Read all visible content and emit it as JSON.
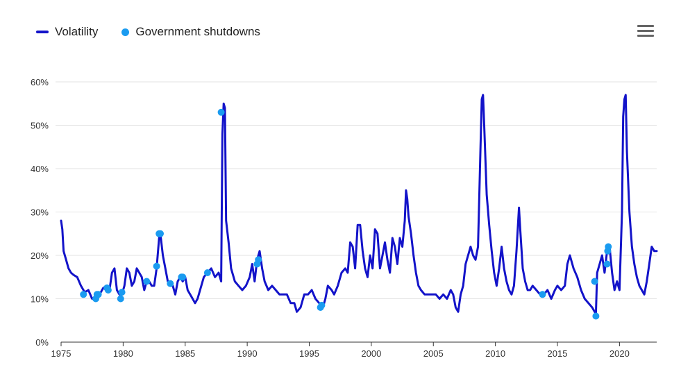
{
  "legend": {
    "items": [
      {
        "label": "Volatility",
        "color": "#1313c9"
      },
      {
        "label": "Government shutdowns",
        "color": "#1a9bf0"
      }
    ]
  },
  "menu_icon": "hamburger-menu-icon",
  "chart_data": {
    "type": "line",
    "title": "",
    "xlabel": "",
    "ylabel": "",
    "xlim": [
      1975,
      2023
    ],
    "ylim": [
      0,
      60
    ],
    "x_ticks": [
      1975,
      1980,
      1985,
      1990,
      1995,
      2000,
      2005,
      2010,
      2015,
      2020
    ],
    "y_ticks": [
      0,
      10,
      20,
      30,
      40,
      50,
      60
    ],
    "y_tick_labels": [
      "0%",
      "10%",
      "20%",
      "30%",
      "40%",
      "50%",
      "60%"
    ],
    "grid": true,
    "legend_position": "top-left",
    "series": [
      {
        "name": "Volatility",
        "color": "#1313c9",
        "points": [
          [
            1975.0,
            28
          ],
          [
            1975.1,
            26
          ],
          [
            1975.2,
            21
          ],
          [
            1975.4,
            19
          ],
          [
            1975.6,
            17
          ],
          [
            1975.8,
            16
          ],
          [
            1976.0,
            15.5
          ],
          [
            1976.3,
            15
          ],
          [
            1976.6,
            13
          ],
          [
            1976.9,
            11.5
          ],
          [
            1977.2,
            12
          ],
          [
            1977.5,
            10
          ],
          [
            1977.8,
            10
          ],
          [
            1978.1,
            11
          ],
          [
            1978.4,
            12.5
          ],
          [
            1978.7,
            13
          ],
          [
            1978.9,
            12
          ],
          [
            1979.1,
            16
          ],
          [
            1979.3,
            17
          ],
          [
            1979.5,
            12
          ],
          [
            1979.7,
            11
          ],
          [
            1979.9,
            11
          ],
          [
            1980.1,
            13
          ],
          [
            1980.3,
            17
          ],
          [
            1980.5,
            16
          ],
          [
            1980.7,
            13
          ],
          [
            1980.9,
            14
          ],
          [
            1981.1,
            17
          ],
          [
            1981.3,
            16
          ],
          [
            1981.5,
            15
          ],
          [
            1981.7,
            12
          ],
          [
            1981.9,
            14
          ],
          [
            1982.1,
            14
          ],
          [
            1982.3,
            13
          ],
          [
            1982.5,
            13
          ],
          [
            1982.7,
            17
          ],
          [
            1982.9,
            24
          ],
          [
            1983.0,
            25
          ],
          [
            1983.2,
            20
          ],
          [
            1983.4,
            17
          ],
          [
            1983.6,
            14
          ],
          [
            1983.8,
            13
          ],
          [
            1984.0,
            13
          ],
          [
            1984.2,
            11
          ],
          [
            1984.4,
            14
          ],
          [
            1984.6,
            15
          ],
          [
            1984.8,
            14
          ],
          [
            1985.0,
            15
          ],
          [
            1985.2,
            12
          ],
          [
            1985.4,
            11
          ],
          [
            1985.6,
            10
          ],
          [
            1985.8,
            9
          ],
          [
            1986.0,
            10
          ],
          [
            1986.3,
            13
          ],
          [
            1986.5,
            15
          ],
          [
            1986.8,
            16
          ],
          [
            1987.1,
            17
          ],
          [
            1987.4,
            15
          ],
          [
            1987.7,
            16
          ],
          [
            1987.9,
            14
          ],
          [
            1988.0,
            48
          ],
          [
            1988.1,
            55
          ],
          [
            1988.2,
            54
          ],
          [
            1988.3,
            28
          ],
          [
            1988.5,
            23
          ],
          [
            1988.7,
            17
          ],
          [
            1989.0,
            14
          ],
          [
            1989.3,
            13
          ],
          [
            1989.6,
            12
          ],
          [
            1989.9,
            13
          ],
          [
            1990.2,
            15
          ],
          [
            1990.4,
            18
          ],
          [
            1990.6,
            14
          ],
          [
            1990.8,
            19
          ],
          [
            1991.0,
            21
          ],
          [
            1991.2,
            17
          ],
          [
            1991.4,
            14
          ],
          [
            1991.7,
            12
          ],
          [
            1992.0,
            13
          ],
          [
            1992.3,
            12
          ],
          [
            1992.6,
            11
          ],
          [
            1992.9,
            11
          ],
          [
            1993.2,
            11
          ],
          [
            1993.5,
            9
          ],
          [
            1993.8,
            9
          ],
          [
            1994.0,
            7
          ],
          [
            1994.3,
            8
          ],
          [
            1994.6,
            11
          ],
          [
            1994.9,
            11
          ],
          [
            1995.2,
            12
          ],
          [
            1995.5,
            10
          ],
          [
            1995.8,
            9
          ],
          [
            1996.1,
            8
          ],
          [
            1996.3,
            10
          ],
          [
            1996.5,
            13
          ],
          [
            1996.8,
            12
          ],
          [
            1997.0,
            11
          ],
          [
            1997.3,
            13
          ],
          [
            1997.6,
            16
          ],
          [
            1997.9,
            17
          ],
          [
            1998.1,
            16
          ],
          [
            1998.3,
            23
          ],
          [
            1998.5,
            22
          ],
          [
            1998.7,
            17
          ],
          [
            1998.9,
            27
          ],
          [
            1999.1,
            27
          ],
          [
            1999.3,
            21
          ],
          [
            1999.5,
            17
          ],
          [
            1999.7,
            15
          ],
          [
            1999.9,
            20
          ],
          [
            2000.1,
            17
          ],
          [
            2000.3,
            26
          ],
          [
            2000.5,
            25
          ],
          [
            2000.7,
            17
          ],
          [
            2000.9,
            20
          ],
          [
            2001.1,
            23
          ],
          [
            2001.3,
            19
          ],
          [
            2001.5,
            16
          ],
          [
            2001.7,
            24
          ],
          [
            2001.9,
            22
          ],
          [
            2002.1,
            18
          ],
          [
            2002.3,
            24
          ],
          [
            2002.5,
            22
          ],
          [
            2002.7,
            28
          ],
          [
            2002.8,
            35
          ],
          [
            2002.9,
            33
          ],
          [
            2003.0,
            29
          ],
          [
            2003.2,
            25
          ],
          [
            2003.4,
            20
          ],
          [
            2003.6,
            16
          ],
          [
            2003.8,
            13
          ],
          [
            2004.0,
            12
          ],
          [
            2004.3,
            11
          ],
          [
            2004.6,
            11
          ],
          [
            2004.9,
            11
          ],
          [
            2005.2,
            11
          ],
          [
            2005.5,
            10
          ],
          [
            2005.8,
            11
          ],
          [
            2006.1,
            10
          ],
          [
            2006.4,
            12
          ],
          [
            2006.6,
            11
          ],
          [
            2006.8,
            8
          ],
          [
            2007.0,
            7
          ],
          [
            2007.2,
            11
          ],
          [
            2007.4,
            13
          ],
          [
            2007.6,
            18
          ],
          [
            2007.8,
            20
          ],
          [
            2008.0,
            22
          ],
          [
            2008.2,
            20
          ],
          [
            2008.4,
            19
          ],
          [
            2008.6,
            22
          ],
          [
            2008.8,
            45
          ],
          [
            2008.9,
            56
          ],
          [
            2009.0,
            57
          ],
          [
            2009.1,
            50
          ],
          [
            2009.3,
            34
          ],
          [
            2009.5,
            27
          ],
          [
            2009.7,
            21
          ],
          [
            2009.9,
            16
          ],
          [
            2010.1,
            13
          ],
          [
            2010.3,
            17
          ],
          [
            2010.5,
            22
          ],
          [
            2010.7,
            17
          ],
          [
            2010.9,
            14
          ],
          [
            2011.1,
            12
          ],
          [
            2011.3,
            11
          ],
          [
            2011.5,
            13
          ],
          [
            2011.7,
            21
          ],
          [
            2011.9,
            31
          ],
          [
            2012.0,
            26
          ],
          [
            2012.2,
            17
          ],
          [
            2012.4,
            14
          ],
          [
            2012.6,
            12
          ],
          [
            2012.8,
            12
          ],
          [
            2013.0,
            13
          ],
          [
            2013.3,
            12
          ],
          [
            2013.6,
            11
          ],
          [
            2013.9,
            11
          ],
          [
            2014.2,
            12
          ],
          [
            2014.5,
            10
          ],
          [
            2014.8,
            12
          ],
          [
            2015.0,
            13
          ],
          [
            2015.3,
            12
          ],
          [
            2015.6,
            13
          ],
          [
            2015.8,
            18
          ],
          [
            2016.0,
            20
          ],
          [
            2016.3,
            17
          ],
          [
            2016.6,
            15
          ],
          [
            2016.9,
            12
          ],
          [
            2017.2,
            10
          ],
          [
            2017.5,
            9
          ],
          [
            2017.8,
            8
          ],
          [
            2018.0,
            7
          ],
          [
            2018.1,
            6.5
          ],
          [
            2018.2,
            16
          ],
          [
            2018.4,
            18
          ],
          [
            2018.6,
            20
          ],
          [
            2018.8,
            16
          ],
          [
            2019.0,
            21
          ],
          [
            2019.2,
            22
          ],
          [
            2019.4,
            16
          ],
          [
            2019.6,
            12
          ],
          [
            2019.8,
            14
          ],
          [
            2020.0,
            12
          ],
          [
            2020.2,
            30
          ],
          [
            2020.3,
            52
          ],
          [
            2020.4,
            56
          ],
          [
            2020.5,
            57
          ],
          [
            2020.6,
            44
          ],
          [
            2020.8,
            30
          ],
          [
            2021.0,
            22
          ],
          [
            2021.2,
            18
          ],
          [
            2021.4,
            15
          ],
          [
            2021.6,
            13
          ],
          [
            2021.8,
            12
          ],
          [
            2022.0,
            11
          ],
          [
            2022.2,
            14
          ],
          [
            2022.4,
            18
          ],
          [
            2022.6,
            22
          ],
          [
            2022.8,
            21
          ],
          [
            2023.0,
            21
          ]
        ]
      },
      {
        "name": "Government shutdowns",
        "color": "#1a9bf0",
        "points": [
          [
            1976.8,
            11
          ],
          [
            1977.8,
            10
          ],
          [
            1977.9,
            11
          ],
          [
            1978.0,
            11
          ],
          [
            1978.7,
            12.5
          ],
          [
            1978.8,
            12
          ],
          [
            1979.8,
            10
          ],
          [
            1979.9,
            11.5
          ],
          [
            1981.9,
            14
          ],
          [
            1982.7,
            17.5
          ],
          [
            1982.9,
            25
          ],
          [
            1983.0,
            25
          ],
          [
            1983.8,
            13.5
          ],
          [
            1984.7,
            15
          ],
          [
            1984.8,
            15
          ],
          [
            1986.8,
            16
          ],
          [
            1987.9,
            53
          ],
          [
            1990.8,
            18
          ],
          [
            1990.9,
            19
          ],
          [
            1995.9,
            8
          ],
          [
            1996.0,
            8.5
          ],
          [
            2013.8,
            11
          ],
          [
            2018.0,
            14
          ],
          [
            2018.1,
            6
          ],
          [
            2019.0,
            18
          ],
          [
            2019.05,
            21
          ],
          [
            2019.1,
            22
          ]
        ]
      }
    ]
  }
}
